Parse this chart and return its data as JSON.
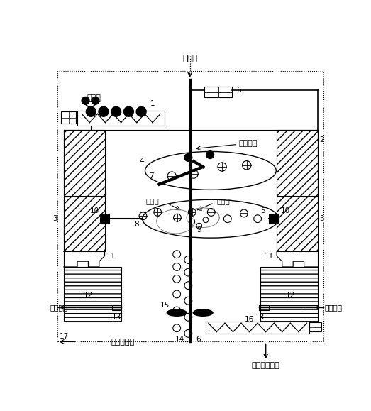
{
  "bg_color": "#ffffff",
  "fig_width": 5.23,
  "fig_height": 5.79,
  "dpi": 100,
  "labels": {
    "steam_top": "水蒸气",
    "biomass": "生物质",
    "rotation": "旋转方向",
    "steam_mid_left": "水蒸气",
    "steam_mid_right": "水蒸气",
    "gas_product_left": "气体产品",
    "gas_product_right": "气体产品",
    "steam_recycle": "水蒸气回用",
    "bio_char": "生物焦和灰分",
    "n1": "1",
    "n2": "2",
    "n3": "3",
    "n4": "4",
    "n5": "5",
    "n6": "6",
    "n7": "7",
    "n8": "8",
    "n9": "9",
    "n10": "10",
    "n11": "11",
    "n12": "12",
    "n13": "13",
    "n14": "14",
    "n15": "15",
    "n16": "16",
    "n17": "17"
  }
}
